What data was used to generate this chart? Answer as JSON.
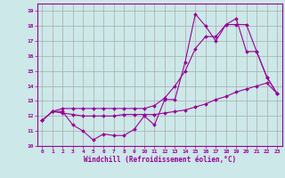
{
  "title": "",
  "xlabel": "Windchill (Refroidissement éolien,°C)",
  "bg_color": "#cce8e8",
  "grid_color": "#aaaaaa",
  "line_color": "#990099",
  "xlim": [
    -0.5,
    23.5
  ],
  "ylim": [
    10,
    19.5
  ],
  "xticks": [
    0,
    1,
    2,
    3,
    4,
    5,
    6,
    7,
    8,
    9,
    10,
    11,
    12,
    13,
    14,
    15,
    16,
    17,
    18,
    19,
    20,
    21,
    22,
    23
  ],
  "yticks": [
    10,
    11,
    12,
    13,
    14,
    15,
    16,
    17,
    18,
    19
  ],
  "series1_x": [
    0,
    1,
    2,
    3,
    4,
    5,
    6,
    7,
    8,
    9,
    10,
    11,
    12,
    13,
    14,
    15,
    16,
    17,
    18,
    19,
    20,
    21,
    22,
    23
  ],
  "series1_y": [
    11.7,
    12.3,
    12.3,
    11.4,
    11.0,
    10.4,
    10.8,
    10.7,
    10.7,
    11.1,
    12.0,
    11.4,
    13.1,
    13.1,
    15.6,
    18.8,
    18.0,
    17.0,
    18.1,
    18.5,
    16.3,
    16.3,
    14.6,
    13.5
  ],
  "series2_x": [
    0,
    1,
    2,
    3,
    4,
    5,
    6,
    7,
    8,
    9,
    10,
    11,
    12,
    13,
    14,
    15,
    16,
    17,
    18,
    19,
    20,
    21,
    22,
    23
  ],
  "series2_y": [
    11.7,
    12.3,
    12.2,
    12.1,
    12.0,
    12.0,
    12.0,
    12.0,
    12.1,
    12.1,
    12.1,
    12.1,
    12.2,
    12.3,
    12.4,
    12.6,
    12.8,
    13.1,
    13.3,
    13.6,
    13.8,
    14.0,
    14.2,
    13.5
  ],
  "series3_x": [
    0,
    1,
    2,
    3,
    4,
    5,
    6,
    7,
    8,
    9,
    10,
    11,
    12,
    13,
    14,
    15,
    16,
    17,
    18,
    19,
    20,
    21,
    22,
    23
  ],
  "series3_y": [
    11.7,
    12.3,
    12.5,
    12.5,
    12.5,
    12.5,
    12.5,
    12.5,
    12.5,
    12.5,
    12.5,
    12.7,
    13.2,
    14.0,
    15.0,
    16.5,
    17.3,
    17.3,
    18.1,
    18.1,
    18.1,
    16.3,
    14.6,
    13.5
  ]
}
